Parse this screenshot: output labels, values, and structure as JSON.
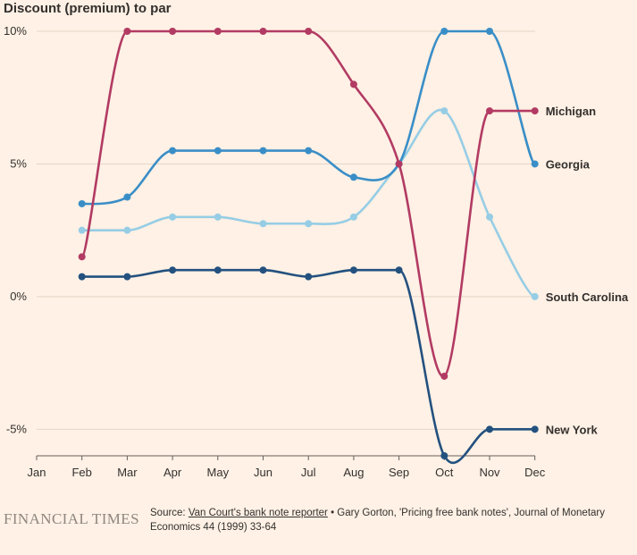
{
  "chart_data": {
    "type": "line",
    "title": "",
    "ylabel": "Discount (premium) to par",
    "xlabel": "",
    "categories": [
      "Jan",
      "Feb",
      "Mar",
      "Apr",
      "May",
      "Jun",
      "Jul",
      "Aug",
      "Sep",
      "Oct",
      "Nov",
      "Dec"
    ],
    "ylim": [
      -6,
      10
    ],
    "yticks": [
      {
        "value": 10,
        "label": "10%"
      },
      {
        "value": 5,
        "label": "5%"
      },
      {
        "value": 0,
        "label": "0%"
      },
      {
        "value": -5,
        "label": "-5%"
      }
    ],
    "grid": true,
    "legend": "direct labels at line ends (right)",
    "series": [
      {
        "name": "Michigan",
        "color": "#b23b63",
        "values": [
          null,
          1.5,
          10,
          10,
          10,
          10,
          10,
          8,
          5,
          -3,
          7,
          7
        ]
      },
      {
        "name": "Georgia",
        "color": "#3a8ec7",
        "values": [
          null,
          3.5,
          3.75,
          5.5,
          5.5,
          5.5,
          5.5,
          4.5,
          5,
          10,
          10,
          5
        ]
      },
      {
        "name": "South Carolina",
        "color": "#96cde5",
        "values": [
          null,
          2.5,
          2.5,
          3,
          3,
          2.75,
          2.75,
          3,
          5,
          7,
          3,
          0
        ]
      },
      {
        "name": "New York",
        "color": "#23517f",
        "values": [
          null,
          0.75,
          0.75,
          1,
          1,
          1,
          0.75,
          1,
          1,
          -6,
          -5,
          -5
        ]
      }
    ]
  },
  "footer": {
    "logo": "FINANCIAL TIMES",
    "source_prefix": "Source: ",
    "source_link": "Van Court's bank note reporter",
    "source_rest": " • Gary Gorton, 'Pricing free bank notes', Journal of Monetary Economics 44 (1999) 33-64"
  }
}
